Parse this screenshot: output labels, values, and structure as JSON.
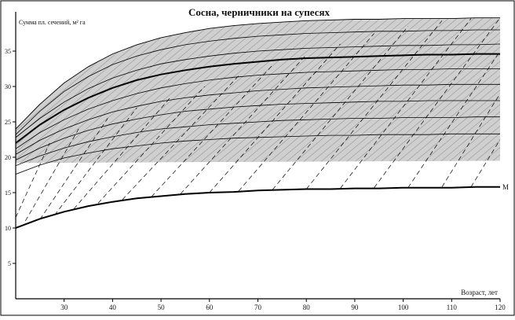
{
  "chart_data": {
    "type": "line",
    "title": "Сосна, черничники на супесях",
    "ylabel": "Сумма пл. сечений, м² га",
    "xlabel": "Возраст, лет",
    "xlim": [
      20,
      120
    ],
    "ylim": [
      0,
      40
    ],
    "x_ticks": [
      30,
      40,
      50,
      60,
      70,
      80,
      90,
      100,
      110,
      120
    ],
    "y_ticks": [
      5,
      10,
      15,
      20,
      25,
      30,
      35
    ],
    "grid": false,
    "legend": "none",
    "annotations": [
      {
        "text": "M",
        "x": 120,
        "y": 15.8
      }
    ],
    "x": [
      20,
      25,
      30,
      35,
      40,
      45,
      50,
      55,
      60,
      65,
      70,
      75,
      80,
      85,
      90,
      95,
      100,
      105,
      110,
      115,
      120
    ],
    "series": [
      {
        "role": "envelope-upper",
        "values": [
          24.0,
          27.5,
          30.5,
          32.8,
          34.6,
          35.9,
          36.9,
          37.6,
          38.2,
          38.6,
          38.9,
          39.1,
          39.3,
          39.4,
          39.5,
          39.5,
          39.6,
          39.6,
          39.6,
          39.7,
          39.7
        ]
      },
      {
        "role": "curve",
        "values": [
          23.2,
          26.5,
          29.3,
          31.4,
          33.1,
          34.3,
          35.2,
          35.9,
          36.4,
          36.8,
          37.1,
          37.3,
          37.5,
          37.6,
          37.7,
          37.8,
          37.8,
          37.9,
          37.9,
          38.0,
          38.0
        ]
      },
      {
        "role": "curve",
        "values": [
          22.8,
          25.5,
          27.8,
          29.7,
          31.2,
          32.3,
          33.2,
          33.8,
          34.3,
          34.7,
          35.0,
          35.2,
          35.4,
          35.5,
          35.6,
          35.7,
          35.8,
          35.8,
          35.9,
          35.9,
          36.0
        ]
      },
      {
        "role": "curve-bold",
        "values": [
          22.0,
          24.6,
          26.7,
          28.4,
          29.8,
          30.9,
          31.7,
          32.3,
          32.8,
          33.2,
          33.5,
          33.8,
          34.0,
          34.1,
          34.2,
          34.3,
          34.4,
          34.5,
          34.5,
          34.6,
          34.6
        ]
      },
      {
        "role": "curve",
        "values": [
          21.2,
          23.5,
          25.3,
          26.8,
          28.0,
          29.0,
          29.8,
          30.4,
          30.9,
          31.3,
          31.6,
          31.8,
          32.0,
          32.1,
          32.2,
          32.3,
          32.4,
          32.4,
          32.5,
          32.5,
          32.5
        ]
      },
      {
        "role": "curve",
        "values": [
          20.4,
          22.4,
          24.0,
          25.3,
          26.4,
          27.2,
          27.9,
          28.4,
          28.8,
          29.1,
          29.4,
          29.6,
          29.8,
          29.9,
          30.0,
          30.1,
          30.2,
          30.2,
          30.3,
          30.3,
          30.3
        ]
      },
      {
        "role": "curve",
        "values": [
          19.6,
          21.3,
          22.7,
          23.8,
          24.7,
          25.4,
          26.0,
          26.5,
          26.8,
          27.1,
          27.3,
          27.5,
          27.6,
          27.7,
          27.8,
          27.9,
          27.9,
          28.0,
          28.0,
          28.0,
          28.0
        ]
      },
      {
        "role": "curve",
        "values": [
          18.8,
          20.2,
          21.3,
          22.2,
          22.9,
          23.5,
          24.0,
          24.3,
          24.6,
          24.8,
          25.0,
          25.2,
          25.3,
          25.4,
          25.5,
          25.5,
          25.6,
          25.6,
          25.6,
          25.7,
          25.7
        ]
      },
      {
        "role": "curve",
        "values": [
          17.6,
          18.9,
          19.9,
          20.6,
          21.2,
          21.6,
          22.0,
          22.3,
          22.5,
          22.7,
          22.8,
          22.9,
          23.0,
          23.1,
          23.1,
          23.2,
          23.2,
          23.2,
          23.3,
          23.3,
          23.3
        ]
      },
      {
        "role": "curve-bold-M",
        "values": [
          10.0,
          11.3,
          12.3,
          13.1,
          13.7,
          14.2,
          14.5,
          14.8,
          15.0,
          15.1,
          15.3,
          15.4,
          15.5,
          15.5,
          15.6,
          15.6,
          15.7,
          15.7,
          15.7,
          15.8,
          15.8
        ]
      }
    ],
    "shaded_band": {
      "x_start": 20,
      "lower_start": 19.2,
      "lower_end": 19.5
    },
    "dashed_lines": [
      {
        "x0": 20,
        "y0": 11.5,
        "x1": 27,
        "y1": 22.0
      },
      {
        "x0": 22,
        "y0": 11.0,
        "x1": 33,
        "y1": 24.0
      },
      {
        "x0": 25,
        "y0": 11.2,
        "x1": 39,
        "y1": 25.5
      },
      {
        "x0": 28,
        "y0": 11.8,
        "x1": 45,
        "y1": 27.0
      },
      {
        "x0": 32,
        "y0": 12.7,
        "x1": 52,
        "y1": 28.5
      },
      {
        "x0": 37,
        "y0": 13.5,
        "x1": 59,
        "y1": 30.0
      },
      {
        "x0": 42,
        "y0": 14.0,
        "x1": 66,
        "y1": 31.5
      },
      {
        "x0": 48,
        "y0": 14.4,
        "x1": 73,
        "y1": 33.0
      },
      {
        "x0": 54,
        "y0": 14.8,
        "x1": 80,
        "y1": 34.5
      },
      {
        "x0": 60,
        "y0": 15.0,
        "x1": 87,
        "y1": 36.0
      },
      {
        "x0": 66,
        "y0": 15.2,
        "x1": 94,
        "y1": 37.5
      },
      {
        "x0": 73,
        "y0": 15.4,
        "x1": 101,
        "y1": 38.5
      },
      {
        "x0": 80,
        "y0": 15.5,
        "x1": 108,
        "y1": 39.3
      },
      {
        "x0": 87,
        "y0": 15.6,
        "x1": 114,
        "y1": 39.6
      },
      {
        "x0": 94,
        "y0": 15.7,
        "x1": 120,
        "y1": 39.7
      },
      {
        "x0": 101,
        "y0": 15.7,
        "x1": 120,
        "y1": 35.0
      },
      {
        "x0": 108,
        "y0": 15.8,
        "x1": 120,
        "y1": 29.0
      },
      {
        "x0": 114,
        "y0": 15.8,
        "x1": 120,
        "y1": 22.5
      }
    ]
  }
}
